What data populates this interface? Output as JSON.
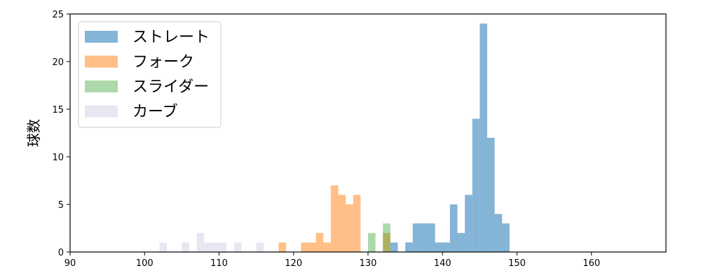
{
  "chart_data": {
    "type": "histogram",
    "title": "",
    "xlabel": "",
    "ylabel": "球数",
    "xlim": [
      90,
      170
    ],
    "ylim": [
      0,
      25
    ],
    "xticks": [
      90,
      100,
      110,
      120,
      130,
      140,
      150,
      160
    ],
    "yticks": [
      0,
      5,
      10,
      15,
      20,
      25
    ],
    "grid": false,
    "legend_position": "top-left",
    "bin_width": 1,
    "series": [
      {
        "name": "ストレート",
        "color": "#1f77b4",
        "alpha": 0.55,
        "bins": [
          {
            "x": 133,
            "count": 1
          },
          {
            "x": 135,
            "count": 1
          },
          {
            "x": 136,
            "count": 3
          },
          {
            "x": 137,
            "count": 3
          },
          {
            "x": 138,
            "count": 3
          },
          {
            "x": 139,
            "count": 1
          },
          {
            "x": 140,
            "count": 1
          },
          {
            "x": 141,
            "count": 5
          },
          {
            "x": 142,
            "count": 2
          },
          {
            "x": 143,
            "count": 6
          },
          {
            "x": 144,
            "count": 14
          },
          {
            "x": 145,
            "count": 24
          },
          {
            "x": 146,
            "count": 12
          },
          {
            "x": 147,
            "count": 4
          },
          {
            "x": 148,
            "count": 3
          }
        ]
      },
      {
        "name": "フォーク",
        "color": "#ff7f0e",
        "alpha": 0.5,
        "bins": [
          {
            "x": 118,
            "count": 1
          },
          {
            "x": 121,
            "count": 1
          },
          {
            "x": 122,
            "count": 1
          },
          {
            "x": 123,
            "count": 2
          },
          {
            "x": 124,
            "count": 1
          },
          {
            "x": 125,
            "count": 7
          },
          {
            "x": 126,
            "count": 6
          },
          {
            "x": 127,
            "count": 5
          },
          {
            "x": 128,
            "count": 6
          },
          {
            "x": 132,
            "count": 2
          }
        ]
      },
      {
        "name": "スライダー",
        "color": "#2ca02c",
        "alpha": 0.4,
        "bins": [
          {
            "x": 130,
            "count": 2
          },
          {
            "x": 132,
            "count": 3
          }
        ]
      },
      {
        "name": "カーブ",
        "color": "#c9c9e3",
        "alpha": 0.45,
        "bins": [
          {
            "x": 102,
            "count": 1
          },
          {
            "x": 105,
            "count": 1
          },
          {
            "x": 107,
            "count": 2
          },
          {
            "x": 108,
            "count": 1
          },
          {
            "x": 109,
            "count": 1
          },
          {
            "x": 110,
            "count": 1
          },
          {
            "x": 112,
            "count": 1
          },
          {
            "x": 115,
            "count": 1
          }
        ]
      }
    ]
  }
}
